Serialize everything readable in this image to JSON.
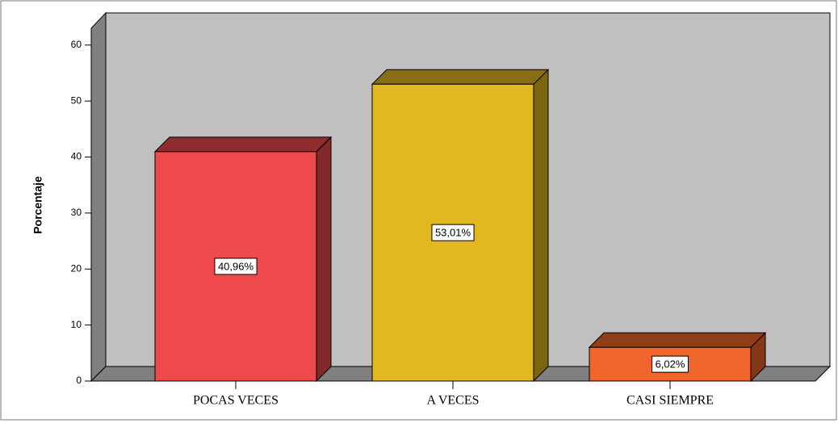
{
  "chart_data": {
    "type": "bar3d",
    "y_label": "Porcentaje",
    "categories": [
      "POCAS VECES",
      "A VECES",
      "CASI SIEMPRE"
    ],
    "values": [
      40.96,
      53.01,
      6.02
    ],
    "value_labels": [
      "40,96%",
      "53,01%",
      "6,02%"
    ],
    "colors": [
      "#ee4a4c",
      "#e1b81f",
      "#f0652a"
    ],
    "ylim": [
      0,
      63
    ],
    "yticks": [
      0,
      10,
      20,
      30,
      40,
      50,
      60
    ]
  }
}
